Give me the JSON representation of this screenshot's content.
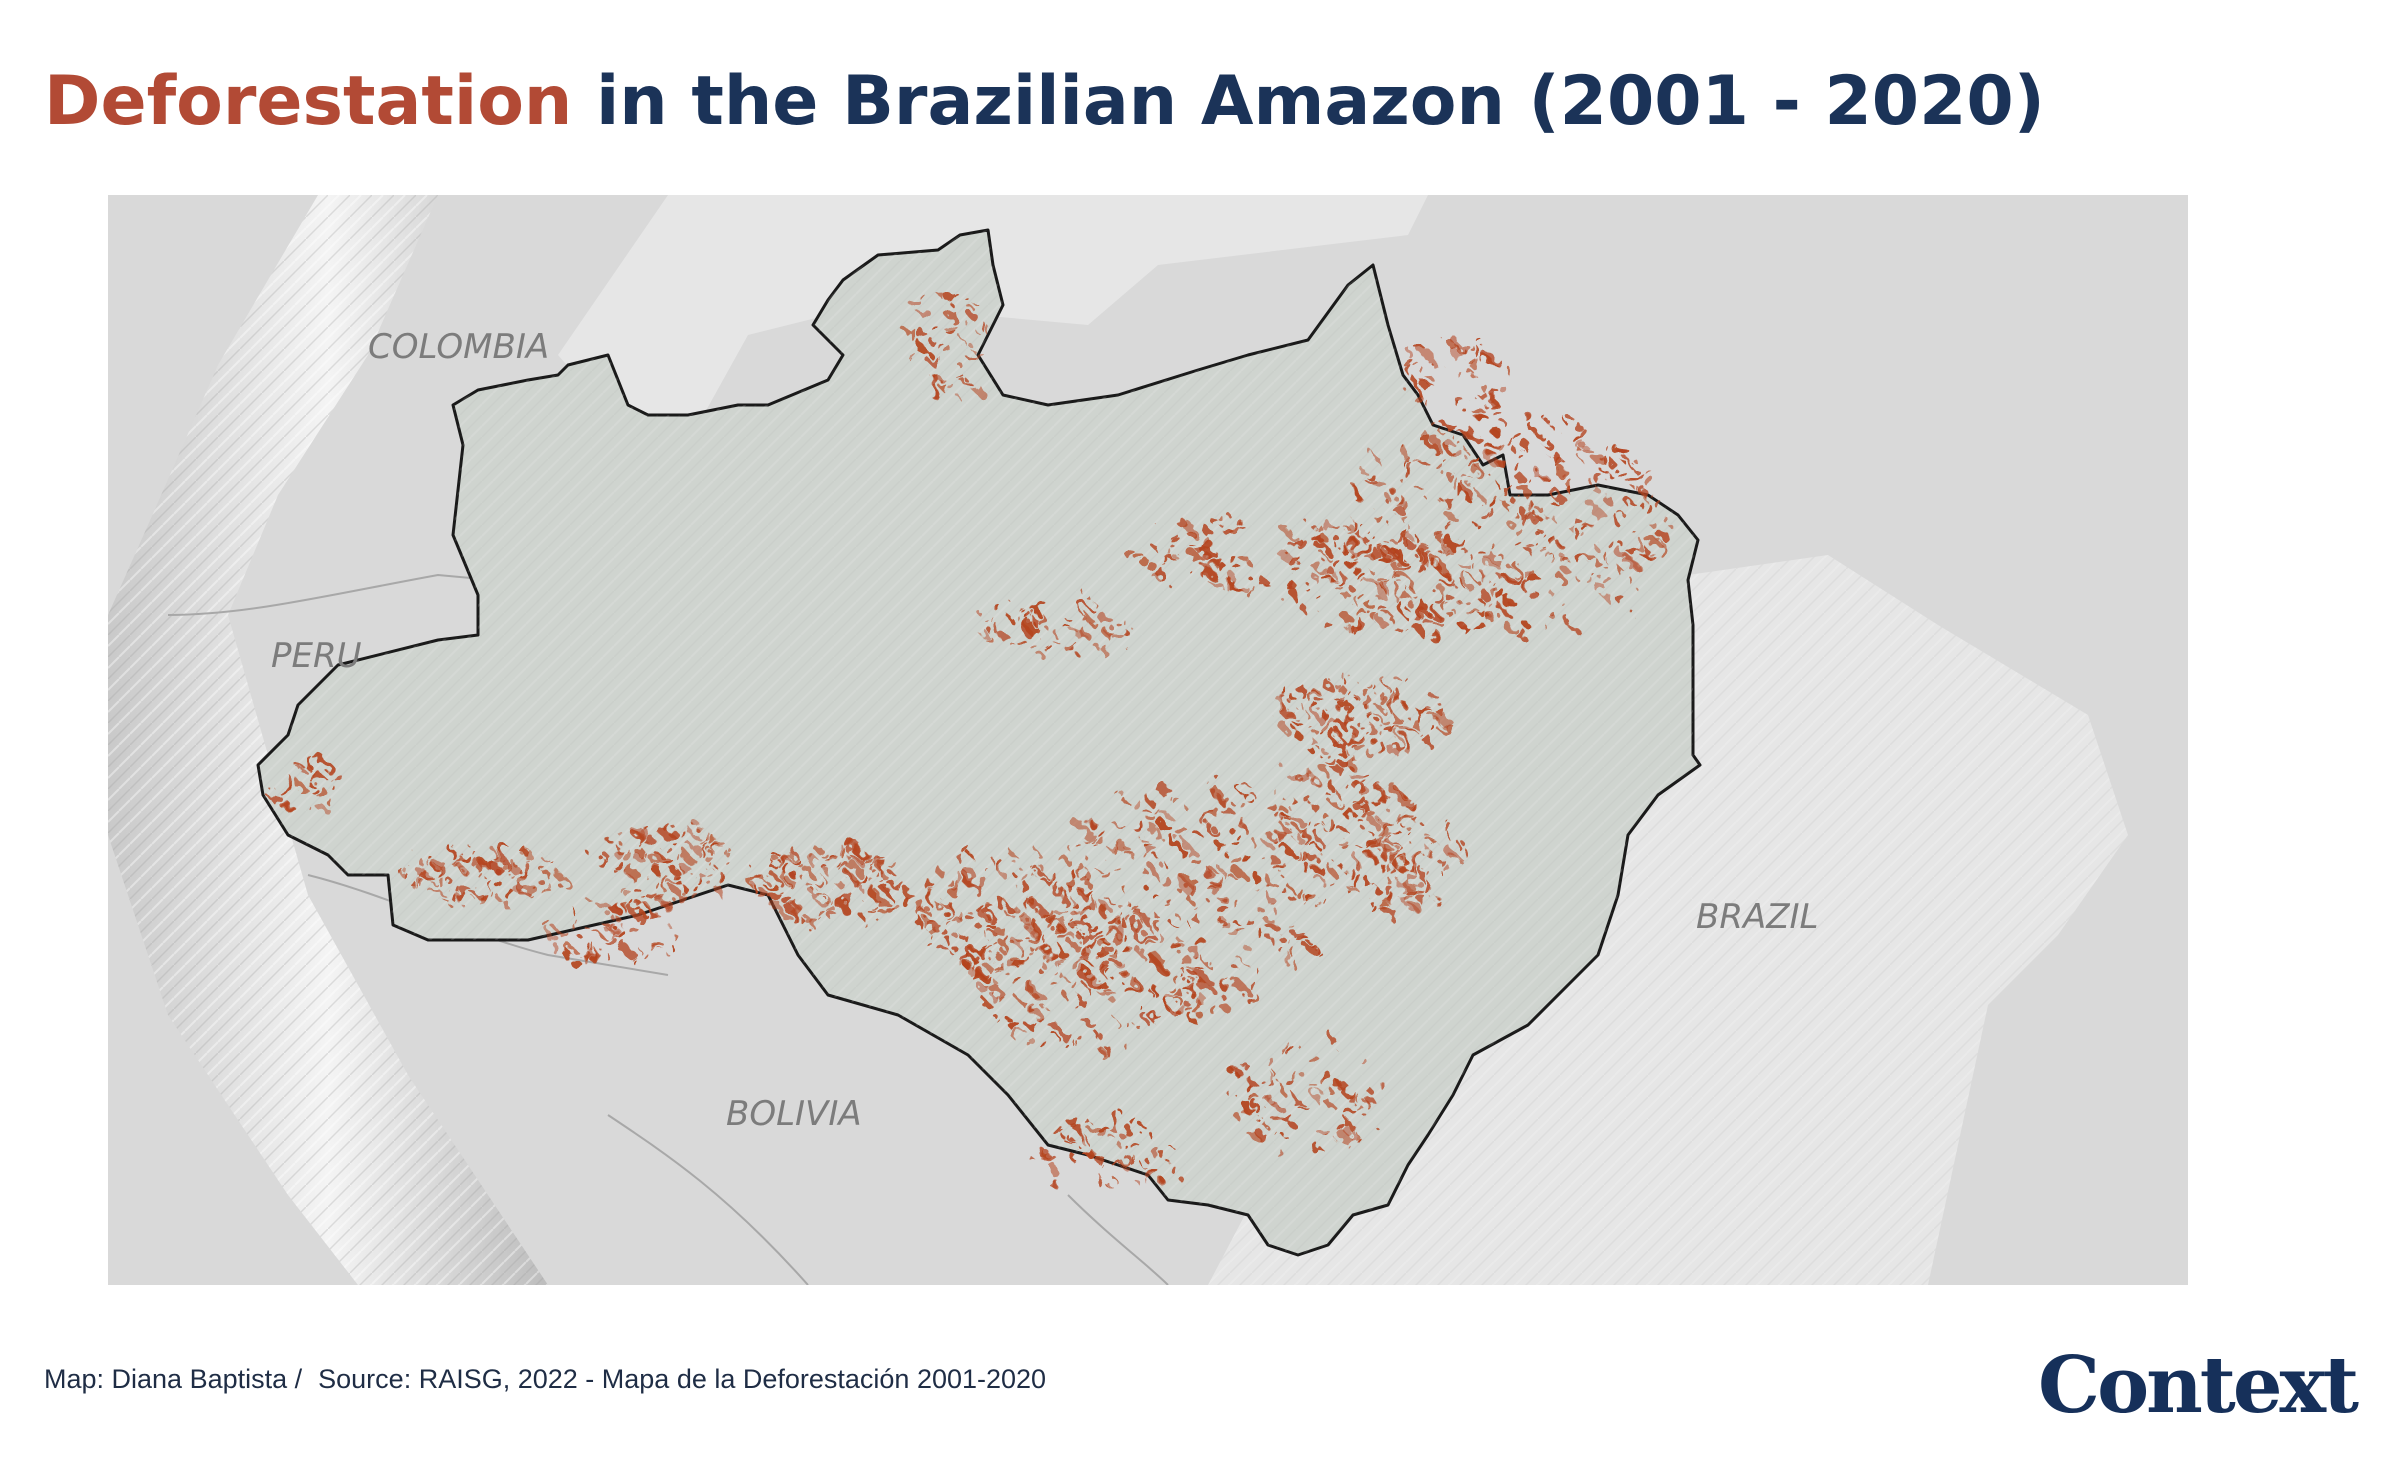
{
  "title": {
    "accent": "Deforestation",
    "rest": " in the Brazilian Amazon (2001 - 2020)"
  },
  "map": {
    "labels": {
      "colombia": "COLOMBIA",
      "peru": "PERU",
      "bolivia": "BOLIVIA",
      "brazil": "BRAZIL"
    },
    "colors": {
      "background": "#d9d9d9",
      "amazon_region": "#cfd4cf",
      "deforestation": "#b4441f",
      "border": "#1a1a1a"
    }
  },
  "footer": {
    "map_credit": "Map: Diana Baptista /",
    "source": "Source: RAISG, 2022 - Mapa de la Deforestación 2001-2020"
  },
  "logo": "Context"
}
